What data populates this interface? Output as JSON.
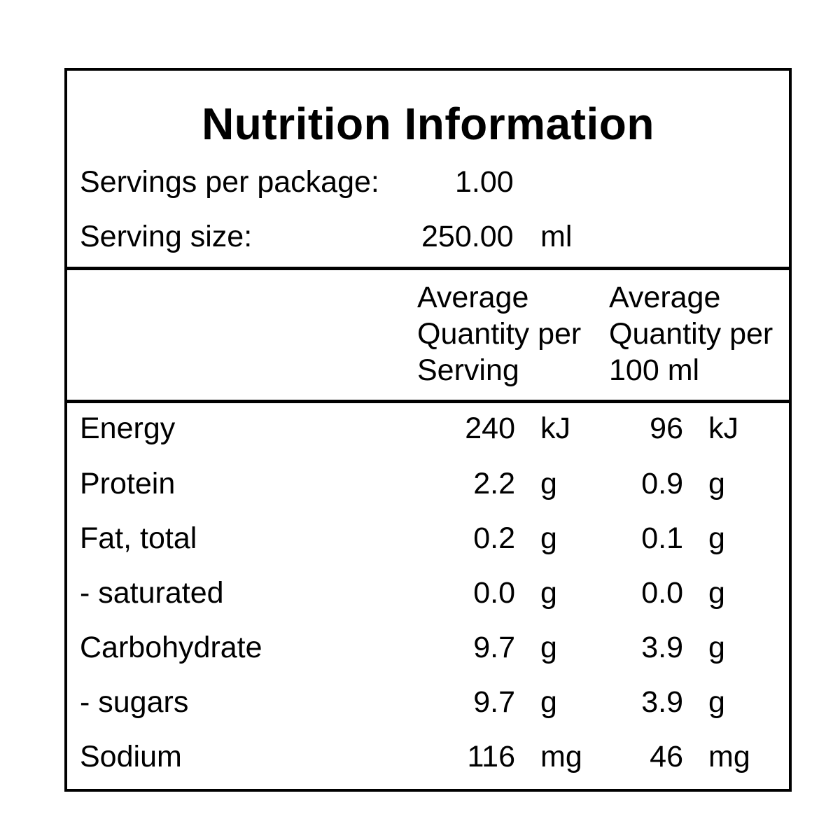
{
  "title": "Nutrition Information",
  "servings_per_package": {
    "label": "Servings per package:",
    "value": "1.00"
  },
  "serving_size": {
    "label": "Serving size:",
    "value": "250.00",
    "unit": "ml"
  },
  "column_headers": {
    "per_serving": [
      "Average",
      "Quantity per",
      "Serving"
    ],
    "per_100": [
      "Average",
      "Quantity per",
      "100 ml"
    ]
  },
  "rows": [
    {
      "name": "Energy",
      "serving_value": "240",
      "serving_unit": "kJ",
      "per100_value": "96",
      "per100_unit": "kJ"
    },
    {
      "name": "Protein",
      "serving_value": "2.2",
      "serving_unit": "g",
      "per100_value": "0.9",
      "per100_unit": "g"
    },
    {
      "name": "Fat, total",
      "serving_value": "0.2",
      "serving_unit": "g",
      "per100_value": "0.1",
      "per100_unit": "g"
    },
    {
      "name": "- saturated",
      "serving_value": "0.0",
      "serving_unit": "g",
      "per100_value": "0.0",
      "per100_unit": "g"
    },
    {
      "name": "Carbohydrate",
      "serving_value": "9.7",
      "serving_unit": "g",
      "per100_value": "3.9",
      "per100_unit": "g"
    },
    {
      "name": "- sugars",
      "serving_value": "9.7",
      "serving_unit": "g",
      "per100_value": "3.9",
      "per100_unit": "g"
    },
    {
      "name": "Sodium",
      "serving_value": "116",
      "serving_unit": "mg",
      "per100_value": "46",
      "per100_unit": "mg"
    }
  ]
}
